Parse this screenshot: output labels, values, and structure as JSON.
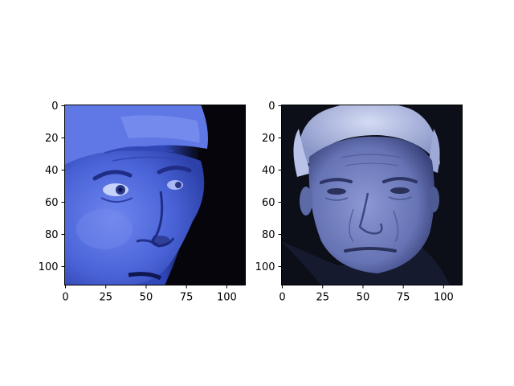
{
  "chart_data": [
    {
      "type": "image",
      "image_size": [
        112,
        112
      ],
      "xlim": [
        -0.5,
        111.5
      ],
      "ylim": [
        111.5,
        -0.5
      ],
      "xticks": [
        0,
        25,
        50,
        75,
        100
      ],
      "xtick_labels": [
        "0",
        "25",
        "50",
        "75",
        "100"
      ],
      "yticks": [
        0,
        20,
        40,
        60,
        80,
        100
      ],
      "ytick_labels": [
        "0",
        "20",
        "40",
        "60",
        "80",
        "100"
      ],
      "content": "close-up of a man's face looking sideways, blue tinted",
      "colors": {
        "skin": "#4a64d8",
        "highlight": "#8fa4f0",
        "shadow": "#1c2670",
        "background": "#06060c"
      }
    },
    {
      "type": "image",
      "image_size": [
        112,
        112
      ],
      "xlim": [
        -0.5,
        111.5
      ],
      "ylim": [
        111.5,
        -0.5
      ],
      "xticks": [
        0,
        25,
        50,
        75,
        100
      ],
      "xtick_labels": [
        "0",
        "25",
        "50",
        "75",
        "100"
      ],
      "yticks": [
        0,
        20,
        40,
        60,
        80,
        100
      ],
      "ytick_labels": [
        "0",
        "20",
        "40",
        "60",
        "80",
        "100"
      ],
      "content": "frontal portrait of an older man with light hair, blue-gray tinted",
      "colors": {
        "skin": "#7583c4",
        "highlight": "#b6c0ea",
        "shadow": "#2a3360",
        "background": "#0c0e18"
      }
    }
  ]
}
